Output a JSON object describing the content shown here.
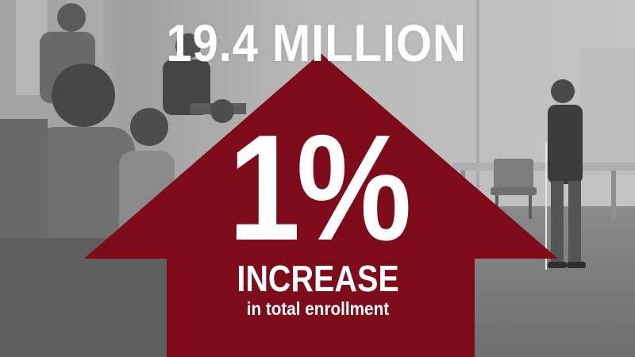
{
  "headline": "19.4 MILLION",
  "stat": {
    "value": "1%",
    "label": "INCREASE",
    "caption": "in total enrollment"
  },
  "colors": {
    "arrow": "#7d0b19",
    "text": "#ffffff",
    "photo_tint": "#9a9a9a"
  },
  "icon": "up-arrow-icon"
}
